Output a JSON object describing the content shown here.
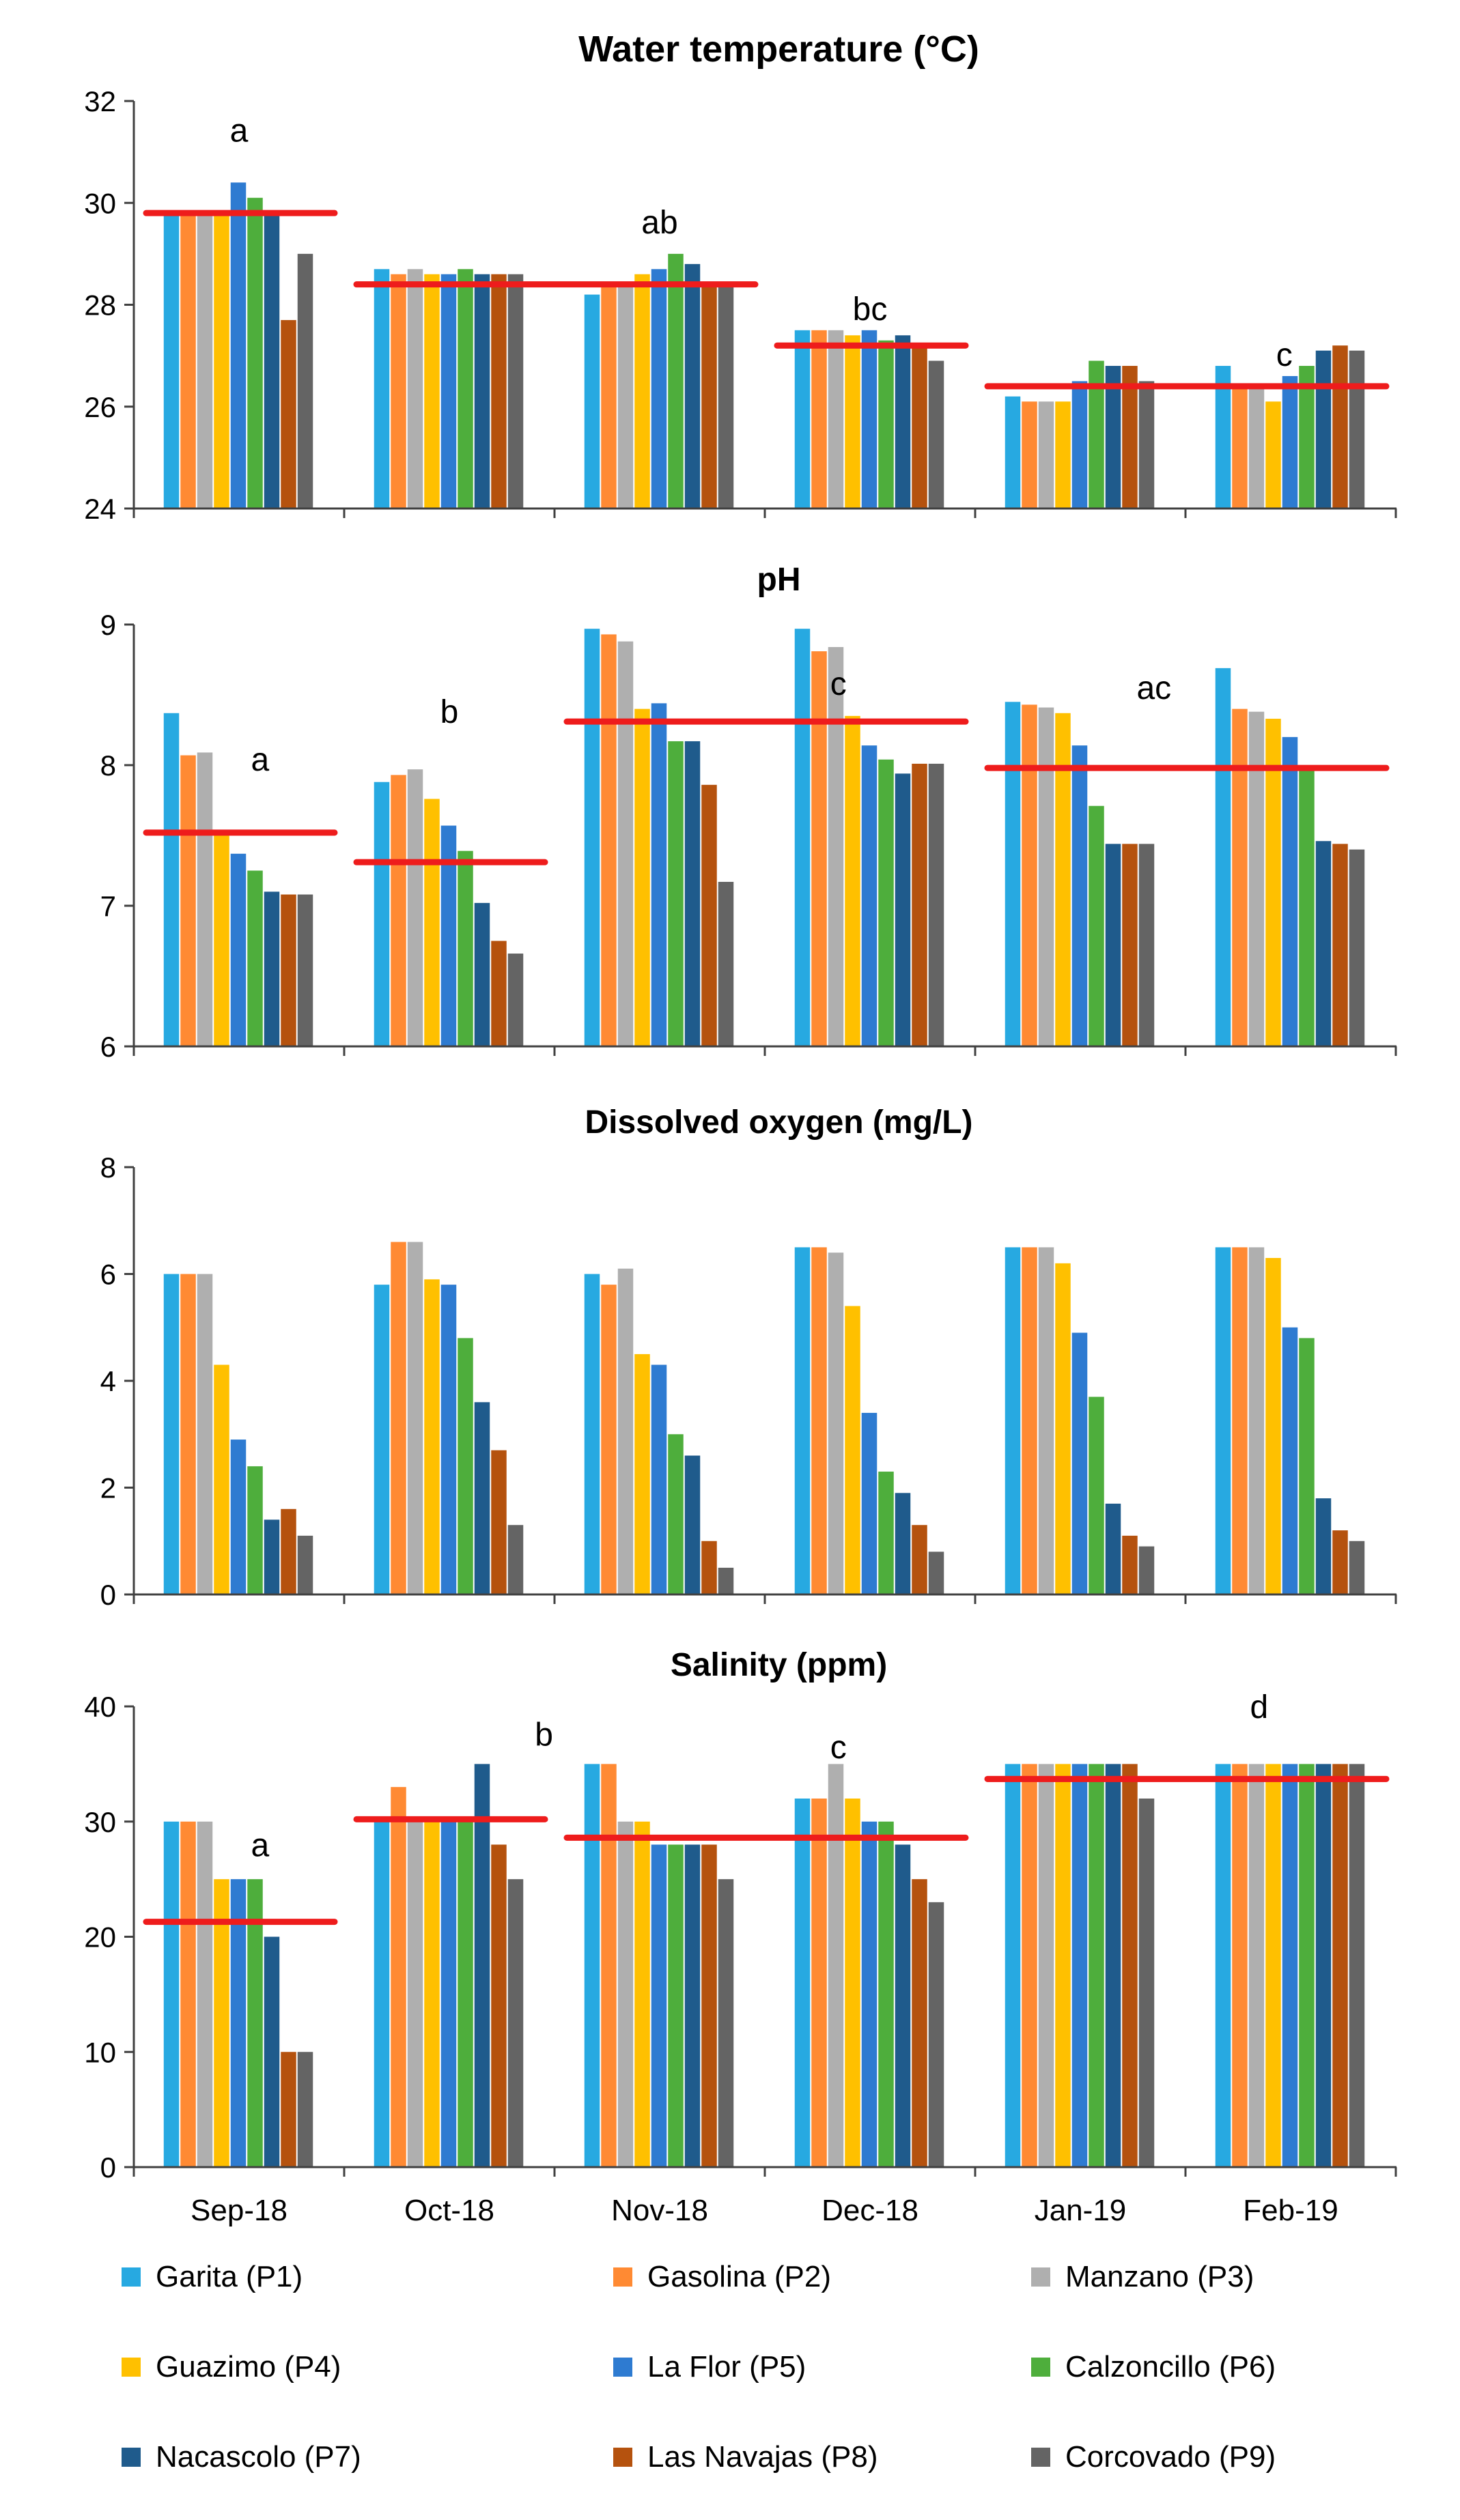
{
  "chart_data": [
    {
      "type": "bar",
      "title": "Water temperature (°C)",
      "categories": [
        "Sep-18",
        "Oct-18",
        "Nov-18",
        "Dec-18",
        "Jan-19",
        "Feb-19"
      ],
      "ylim": [
        24,
        32
      ],
      "yticks": [
        "24",
        "26",
        "28",
        "30",
        "32"
      ],
      "series": [
        {
          "name": "Garita (P1)",
          "values": [
            29.8,
            28.7,
            28.2,
            27.5,
            26.2,
            26.8
          ]
        },
        {
          "name": "Gasolina (P2)",
          "values": [
            29.8,
            28.6,
            28.4,
            27.5,
            26.1,
            26.4
          ]
        },
        {
          "name": "Manzano (P3)",
          "values": [
            29.8,
            28.7,
            28.4,
            27.5,
            26.1,
            26.4
          ]
        },
        {
          "name": "Guazimo (P4)",
          "values": [
            29.8,
            28.6,
            28.6,
            27.4,
            26.1,
            26.1
          ]
        },
        {
          "name": "La Flor (P5)",
          "values": [
            30.4,
            28.6,
            28.7,
            27.5,
            26.5,
            26.6
          ]
        },
        {
          "name": "Calzoncillo (P6)",
          "values": [
            30.1,
            28.7,
            29.0,
            27.3,
            26.9,
            26.8
          ]
        },
        {
          "name": "Nacascolo (P7)",
          "values": [
            29.8,
            28.6,
            28.8,
            27.4,
            26.8,
            27.1
          ]
        },
        {
          "name": "Las Navajas (P8)",
          "values": [
            27.7,
            28.6,
            28.4,
            27.2,
            26.8,
            27.2
          ]
        },
        {
          "name": "Corcovado (P9)",
          "values": [
            29.0,
            28.6,
            28.4,
            26.9,
            26.5,
            27.1
          ]
        }
      ],
      "mean_lines": [
        {
          "from": "Sep-18",
          "to": "Sep-18",
          "y": 29.8
        },
        {
          "from": "Oct-18",
          "to": "Nov-18",
          "y": 28.4
        },
        {
          "from": "Dec-18",
          "to": "Dec-18",
          "y": 27.2
        },
        {
          "from": "Jan-19",
          "to": "Feb-19",
          "y": 26.4
        }
      ],
      "annotations": [
        {
          "text": "a",
          "category": "Sep-18",
          "offset": 0.0,
          "y": 31.2
        },
        {
          "text": "ab",
          "category": "Oct-18",
          "offset": 1.0,
          "y": 29.4
        },
        {
          "text": "bc",
          "category": "Dec-18",
          "offset": 0.0,
          "y": 27.7
        },
        {
          "text": "c",
          "category": "Jan-19",
          "offset": 0.97,
          "y": 26.8
        }
      ]
    },
    {
      "type": "bar",
      "title": "pH",
      "categories": [
        "Sep-18",
        "Oct-18",
        "Nov-18",
        "Dec-18",
        "Jan-19",
        "Feb-19"
      ],
      "ylim": [
        6,
        9
      ],
      "yticks": [
        "6",
        "7",
        "8",
        "9"
      ],
      "series": [
        {
          "name": "Garita (P1)",
          "values": [
            8.37,
            7.88,
            8.97,
            8.97,
            8.45,
            8.69
          ]
        },
        {
          "name": "Gasolina (P2)",
          "values": [
            8.07,
            7.93,
            8.93,
            8.81,
            8.43,
            8.4
          ]
        },
        {
          "name": "Manzano (P3)",
          "values": [
            8.09,
            7.97,
            8.88,
            8.84,
            8.41,
            8.38
          ]
        },
        {
          "name": "Guazimo (P4)",
          "values": [
            7.5,
            7.76,
            8.4,
            8.35,
            8.37,
            8.33
          ]
        },
        {
          "name": "La Flor (P5)",
          "values": [
            7.37,
            7.57,
            8.44,
            8.14,
            8.14,
            8.2
          ]
        },
        {
          "name": "Calzoncillo (P6)",
          "values": [
            7.25,
            7.39,
            8.17,
            8.04,
            7.71,
            7.98
          ]
        },
        {
          "name": "Nacascolo (P7)",
          "values": [
            7.1,
            7.02,
            8.17,
            7.94,
            7.44,
            7.46
          ]
        },
        {
          "name": "Las Navajas (P8)",
          "values": [
            7.08,
            6.75,
            7.86,
            8.01,
            7.44,
            7.44
          ]
        },
        {
          "name": "Corcovado (P9)",
          "values": [
            7.08,
            6.66,
            7.17,
            8.01,
            7.44,
            7.4
          ]
        }
      ],
      "mean_lines": [
        {
          "from": "Sep-18",
          "to": "Sep-18",
          "y": 7.52
        },
        {
          "from": "Oct-18",
          "to": "Oct-18",
          "y": 7.31
        },
        {
          "from": "Nov-18",
          "to": "Dec-18",
          "y": 8.31
        },
        {
          "from": "Jan-19",
          "to": "Feb-19",
          "y": 7.98
        }
      ],
      "annotations": [
        {
          "text": "a",
          "category": "Sep-18",
          "offset": 0.1,
          "y": 7.96
        },
        {
          "text": "b",
          "category": "Oct-18",
          "offset": 0.0,
          "y": 8.3
        },
        {
          "text": "c",
          "category": "Nov-18",
          "offset": 0.85,
          "y": 8.5
        },
        {
          "text": "ac",
          "category": "Feb-19",
          "offset": -0.65,
          "y": 8.47
        }
      ]
    },
    {
      "type": "bar",
      "title": "Dissolved oxygen (mg/L)",
      "categories": [
        "Sep-18",
        "Oct-18",
        "Nov-18",
        "Dec-18",
        "Jan-19",
        "Feb-19"
      ],
      "ylim": [
        0,
        8
      ],
      "yticks": [
        "0",
        "2",
        "4",
        "6",
        "8"
      ],
      "series": [
        {
          "name": "Garita (P1)",
          "values": [
            6.0,
            5.8,
            6.0,
            6.5,
            6.5,
            6.5
          ]
        },
        {
          "name": "Gasolina (P2)",
          "values": [
            6.0,
            6.6,
            5.8,
            6.5,
            6.5,
            6.5
          ]
        },
        {
          "name": "Manzano (P3)",
          "values": [
            6.0,
            6.6,
            6.1,
            6.4,
            6.5,
            6.5
          ]
        },
        {
          "name": "Guazimo (P4)",
          "values": [
            4.3,
            5.9,
            4.5,
            5.4,
            6.2,
            6.3
          ]
        },
        {
          "name": "La Flor (P5)",
          "values": [
            2.9,
            5.8,
            4.3,
            3.4,
            4.9,
            5.0
          ]
        },
        {
          "name": "Calzoncillo (P6)",
          "values": [
            2.4,
            4.8,
            3.0,
            2.3,
            3.7,
            4.8
          ]
        },
        {
          "name": "Nacascolo (P7)",
          "values": [
            1.4,
            3.6,
            2.6,
            1.9,
            1.7,
            1.8
          ]
        },
        {
          "name": "Las Navajas (P8)",
          "values": [
            1.6,
            2.7,
            1.0,
            1.3,
            1.1,
            1.2
          ]
        },
        {
          "name": "Corcovado (P9)",
          "values": [
            1.1,
            1.3,
            0.5,
            0.8,
            0.9,
            1.0
          ]
        }
      ],
      "mean_lines": [],
      "annotations": []
    },
    {
      "type": "bar",
      "title": "Salinity (ppm)",
      "categories": [
        "Sep-18",
        "Oct-18",
        "Nov-18",
        "Dec-18",
        "Jan-19",
        "Feb-19"
      ],
      "ylim": [
        0,
        40
      ],
      "yticks": [
        "0",
        "10",
        "20",
        "30",
        "40"
      ],
      "series": [
        {
          "name": "Garita (P1)",
          "values": [
            30,
            30,
            35,
            32,
            35,
            35
          ]
        },
        {
          "name": "Gasolina (P2)",
          "values": [
            30,
            33,
            35,
            32,
            35,
            35
          ]
        },
        {
          "name": "Manzano (P3)",
          "values": [
            30,
            30,
            30,
            35,
            35,
            35
          ]
        },
        {
          "name": "Guazimo (P4)",
          "values": [
            25,
            30,
            30,
            32,
            35,
            35
          ]
        },
        {
          "name": "La Flor (P5)",
          "values": [
            25,
            30,
            28,
            30,
            35,
            35
          ]
        },
        {
          "name": "Calzoncillo (P6)",
          "values": [
            25,
            30,
            28,
            30,
            35,
            35
          ]
        },
        {
          "name": "Nacascolo (P7)",
          "values": [
            20,
            35,
            28,
            28,
            35,
            35
          ]
        },
        {
          "name": "Las Navajas (P8)",
          "values": [
            10,
            28,
            28,
            25,
            35,
            35
          ]
        },
        {
          "name": "Corcovado (P9)",
          "values": [
            10,
            25,
            25,
            23,
            32,
            35
          ]
        }
      ],
      "mean_lines": [
        {
          "from": "Sep-18",
          "to": "Sep-18",
          "y": 21.3
        },
        {
          "from": "Oct-18",
          "to": "Oct-18",
          "y": 30.2
        },
        {
          "from": "Nov-18",
          "to": "Dec-18",
          "y": 28.6
        },
        {
          "from": "Jan-19",
          "to": "Feb-19",
          "y": 33.7
        }
      ],
      "annotations": [
        {
          "text": "a",
          "category": "Sep-18",
          "offset": 0.1,
          "y": 27.0
        },
        {
          "text": "b",
          "category": "Oct-18",
          "offset": 0.45,
          "y": 36.6
        },
        {
          "text": "c",
          "category": "Nov-18",
          "offset": 0.85,
          "y": 35.5
        },
        {
          "text": "d",
          "category": "Jan-19",
          "offset": 0.85,
          "y": 39.0
        }
      ]
    }
  ],
  "legend": [
    {
      "name": "Garita (P1)",
      "color": "#27A9E1"
    },
    {
      "name": "Gasolina (P2)",
      "color": "#FF8A33"
    },
    {
      "name": "Manzano (P3)",
      "color": "#AFAFAF"
    },
    {
      "name": "Guazimo (P4)",
      "color": "#FFC000"
    },
    {
      "name": "La Flor (P5)",
      "color": "#2E7BD1"
    },
    {
      "name": "Calzoncillo (P6)",
      "color": "#4EAE3C"
    },
    {
      "name": "Nacascolo (P7)",
      "color": "#1F5B8C"
    },
    {
      "name": "Las Navajas (P8)",
      "color": "#B5520E"
    },
    {
      "name": "Corcovado (P9)",
      "color": "#646464"
    }
  ],
  "mean_line_color": "#EE1C1C",
  "axis_color": "#404040"
}
